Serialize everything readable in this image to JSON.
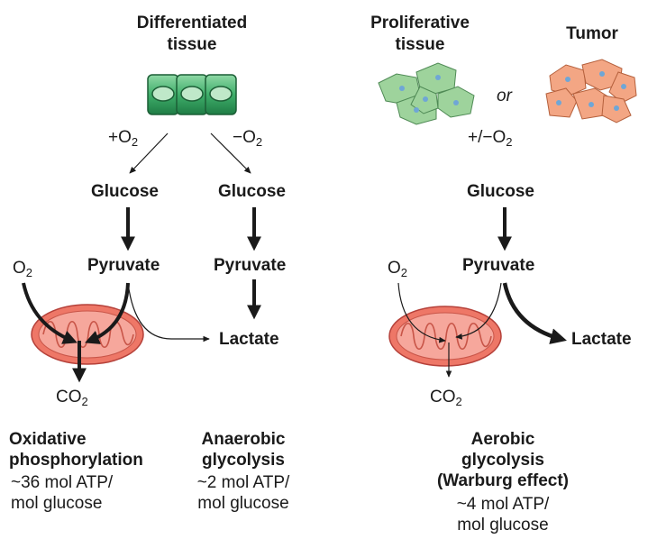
{
  "left": {
    "header": "Differentiated\ntissue",
    "plus_o2": "+O",
    "minus_o2": "−O",
    "o2_sub": "2",
    "glucose_1": "Glucose",
    "glucose_2": "Glucose",
    "pyruvate_1": "Pyruvate",
    "pyruvate_2": "Pyruvate",
    "o2_label": "O",
    "co2_label": "CO",
    "lactate": "Lactate",
    "ox_phos_title": "Oxidative\nphosphorylation",
    "ox_phos_yield": "~36 mol ATP/\nmol glucose",
    "anaerobic_title": "Anaerobic\nglycolysis",
    "anaerobic_yield": "~2 mol ATP/\nmol glucose"
  },
  "right": {
    "proliferative_header": "Proliferative\ntissue",
    "tumor_header": "Tumor",
    "or_label": "or",
    "plus_minus_o2": "+/−O",
    "o2_sub": "2",
    "glucose": "Glucose",
    "pyruvate": "Pyruvate",
    "o2_label": "O",
    "co2_label": "CO",
    "lactate": "Lactate",
    "aerobic_title": "Aerobic\nglycolysis\n(Warburg effect)",
    "aerobic_yield": "~4 mol ATP/\nmol glucose"
  },
  "colors": {
    "differentiated_cell": "#3fae6a",
    "proliferative_cell": "#9ed39c",
    "tumor_cell": "#f3a684",
    "mitochondrion": "#ee7767",
    "arrow": "#1a1a1a"
  }
}
